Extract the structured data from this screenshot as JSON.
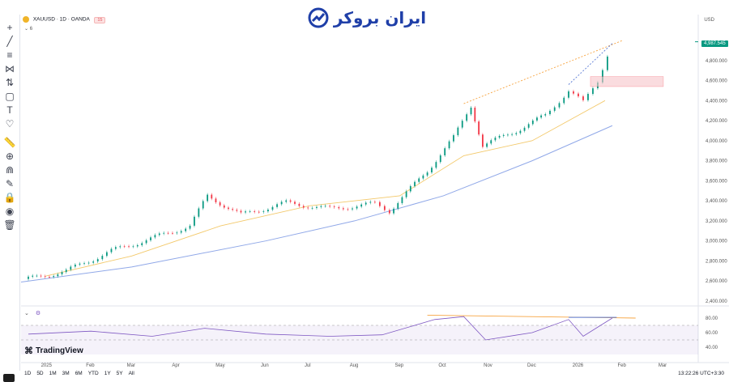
{
  "chart_header": {
    "symbol": "XAUUSD · 1D · OANDA",
    "badge": "15",
    "indicator_count": "6"
  },
  "watermark": {
    "logo_text": "ایران بروکر"
  },
  "currency_label": "USD",
  "last_price": "4,987.545",
  "y_axis_ticks": [
    "4,800.000",
    "4,600.000",
    "4,400.000",
    "4,200.000",
    "4,000.000",
    "3,800.000",
    "3,600.000",
    "3,400.000",
    "3,200.000",
    "3,000.000",
    "2,800.000",
    "2,600.000",
    "2,400.000"
  ],
  "rsi_axis_ticks": [
    "80.00",
    "60.00",
    "40.00"
  ],
  "x_axis_ticks": [
    "2025",
    "Feb",
    "Mar",
    "Apr",
    "May",
    "Jun",
    "Jul",
    "Aug",
    "Sep",
    "Oct",
    "Nov",
    "Dec",
    "2026",
    "Feb",
    "Mar"
  ],
  "branding": "TradingView",
  "ranges": [
    "1D",
    "5D",
    "1M",
    "3M",
    "6M",
    "YTD",
    "1Y",
    "5Y",
    "All"
  ],
  "clock": "13:22:26 UTC+3:30",
  "tools": [
    {
      "name": "crosshair-icon",
      "glyph": "+"
    },
    {
      "name": "trend-line-icon",
      "glyph": "╱"
    },
    {
      "name": "fib-icon",
      "glyph": "≡"
    },
    {
      "name": "pattern-icon",
      "glyph": "⋈"
    },
    {
      "name": "prediction-icon",
      "glyph": "⇅"
    },
    {
      "name": "geometry-icon",
      "glyph": "▢"
    },
    {
      "name": "text-icon",
      "glyph": "T"
    },
    {
      "name": "heart-icon",
      "glyph": "♡"
    },
    {
      "name": "ruler-icon",
      "glyph": "📏"
    },
    {
      "name": "zoom-icon",
      "glyph": "⊕"
    },
    {
      "name": "magnet-icon",
      "glyph": "⋒"
    },
    {
      "name": "lock-drawings-icon",
      "glyph": "✎"
    },
    {
      "name": "lock-icon",
      "glyph": "🔒"
    },
    {
      "name": "eye-icon",
      "glyph": "◉"
    },
    {
      "name": "trash-icon",
      "glyph": "🗑"
    }
  ],
  "chart_data": {
    "type": "line",
    "title": "",
    "price": {
      "x": [
        "2024-12-20",
        "2025-01-15",
        "2025-02-15",
        "2025-03-20",
        "2025-04-10",
        "2025-04-22",
        "2025-05-15",
        "2025-06-15",
        "2025-07-15",
        "2025-08-15",
        "2025-08-25",
        "2025-09-20",
        "2025-10-08",
        "2025-10-20",
        "2025-10-28",
        "2025-11-20",
        "2025-12-10",
        "2025-12-26",
        "2026-01-05",
        "2026-01-15",
        "2026-01-25"
      ],
      "y": [
        2620,
        2700,
        2900,
        3050,
        3150,
        3450,
        3260,
        3380,
        3320,
        3370,
        3300,
        3700,
        4030,
        4350,
        3950,
        4100,
        4250,
        4500,
        4380,
        4600,
        4987
      ]
    },
    "ma_fast": {
      "x": [
        "2025-01-01",
        "2025-03-01",
        "2025-05-01",
        "2025-07-01",
        "2025-09-01",
        "2025-10-15",
        "2025-12-01",
        "2026-01-20"
      ],
      "y": [
        2650,
        2850,
        3150,
        3350,
        3450,
        3850,
        4000,
        4400
      ]
    },
    "ma_slow": {
      "x": [
        "2024-12-15",
        "2025-03-01",
        "2025-06-01",
        "2025-08-01",
        "2025-10-01",
        "2025-12-01",
        "2026-01-25"
      ],
      "y": [
        2590,
        2740,
        3000,
        3200,
        3450,
        3800,
        4150
      ]
    },
    "rsi": {
      "x": [
        "2024-12-20",
        "2025-02-01",
        "2025-03-15",
        "2025-04-20",
        "2025-06-01",
        "2025-07-15",
        "2025-08-20",
        "2025-09-25",
        "2025-10-15",
        "2025-10-30",
        "2025-12-01",
        "2025-12-26",
        "2026-01-05",
        "2026-01-25"
      ],
      "y": [
        58,
        62,
        55,
        66,
        58,
        55,
        57,
        78,
        82,
        50,
        60,
        78,
        55,
        80
      ]
    },
    "ylim": [
      2400,
      5000
    ],
    "rsi_ylim": [
      30,
      90
    ],
    "grid": true
  }
}
